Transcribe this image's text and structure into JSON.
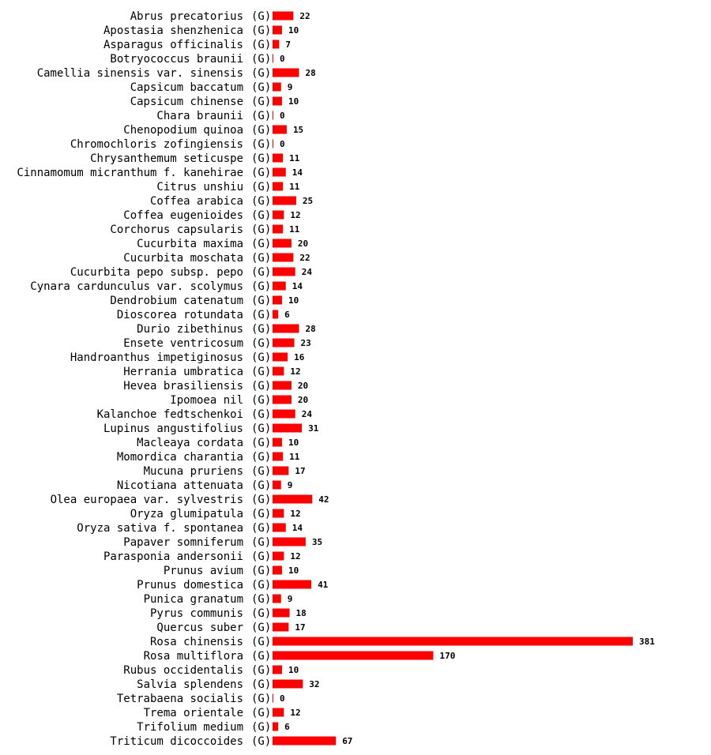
{
  "chart_data": {
    "type": "bar",
    "orientation": "horizontal",
    "title": "",
    "xlabel": "",
    "ylabel": "",
    "tag": "(G)",
    "bar_color": "#ff0000",
    "xlim": [
      0,
      381
    ],
    "categories": [
      "Abrus precatorius",
      "Apostasia shenzhenica",
      "Asparagus officinalis",
      "Botryococcus braunii",
      "Camellia sinensis var. sinensis",
      "Capsicum baccatum",
      "Capsicum chinense",
      "Chara braunii",
      "Chenopodium quinoa",
      "Chromochloris zofingiensis",
      "Chrysanthemum seticuspe",
      "Cinnamomum micranthum f. kanehirae",
      "Citrus unshiu",
      "Coffea arabica",
      "Coffea eugenioides",
      "Corchorus capsularis",
      "Cucurbita maxima",
      "Cucurbita moschata",
      "Cucurbita pepo subsp. pepo",
      "Cynara cardunculus var. scolymus",
      "Dendrobium catenatum",
      "Dioscorea rotundata",
      "Durio zibethinus",
      "Ensete ventricosum",
      "Handroanthus impetiginosus",
      "Herrania umbratica",
      "Hevea brasiliensis",
      "Ipomoea nil",
      "Kalanchoe fedtschenkoi",
      "Lupinus angustifolius",
      "Macleaya cordata",
      "Momordica charantia",
      "Mucuna pruriens",
      "Nicotiana attenuata",
      "Olea europaea var. sylvestris",
      "Oryza glumipatula",
      "Oryza sativa f. spontanea",
      "Papaver somniferum",
      "Parasponia andersonii",
      "Prunus avium",
      "Prunus domestica",
      "Punica granatum",
      "Pyrus communis",
      "Quercus suber",
      "Rosa chinensis",
      "Rosa multiflora",
      "Rubus occidentalis",
      "Salvia splendens",
      "Tetrabaena socialis",
      "Trema orientale",
      "Trifolium medium",
      "Triticum dicoccoides"
    ],
    "values": [
      22,
      10,
      7,
      0,
      28,
      9,
      10,
      0,
      15,
      0,
      11,
      14,
      11,
      25,
      12,
      11,
      20,
      22,
      24,
      14,
      10,
      6,
      28,
      23,
      16,
      12,
      20,
      20,
      24,
      31,
      10,
      11,
      17,
      9,
      42,
      12,
      14,
      35,
      12,
      10,
      41,
      9,
      18,
      17,
      381,
      170,
      10,
      32,
      0,
      12,
      6,
      67
    ]
  }
}
